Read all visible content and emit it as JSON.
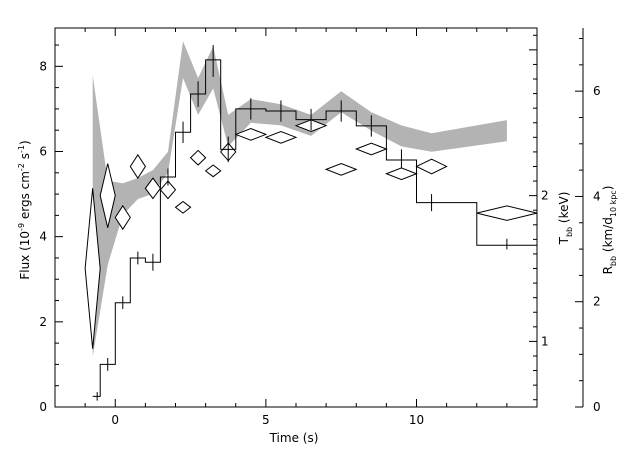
{
  "chart_data": {
    "type": "line",
    "xlabel": "Time (s)",
    "ylabel_left": {
      "main": "Flux (10",
      "sup1": "-9",
      "mid": " ergs cm",
      "sup2": "-2",
      "mid2": " s",
      "sup3": "-1",
      "end": ")"
    },
    "ylabel_right1": {
      "main": "T",
      "sub": "bb",
      "end": " (keV)"
    },
    "ylabel_right2": {
      "main": "R",
      "sub": "bb",
      "mid": " (km/d",
      "sub2": "10 kpc",
      "end": ")"
    },
    "xlim": [
      -2,
      14
    ],
    "ylim_left": [
      0,
      8.9
    ],
    "ylim_T": [
      0.55,
      3.15
    ],
    "ylim_R": [
      0,
      7.2
    ],
    "xticks": [
      0,
      5,
      10
    ],
    "yticks_left": [
      0,
      2,
      4,
      6,
      8
    ],
    "yticks_T": [
      1,
      2
    ],
    "yticks_R": [
      0,
      2,
      4,
      6
    ],
    "flux_steps": [
      {
        "x0": -0.75,
        "x1": -0.5,
        "y": 0.25
      },
      {
        "x0": -0.5,
        "x1": 0.0,
        "y": 1.0
      },
      {
        "x0": 0.0,
        "x1": 0.5,
        "y": 2.45
      },
      {
        "x0": 0.5,
        "x1": 1.0,
        "y": 3.5
      },
      {
        "x0": 1.0,
        "x1": 1.5,
        "y": 3.4
      },
      {
        "x0": 1.5,
        "x1": 2.0,
        "y": 5.4
      },
      {
        "x0": 2.0,
        "x1": 2.5,
        "y": 6.45
      },
      {
        "x0": 2.5,
        "x1": 3.0,
        "y": 7.35
      },
      {
        "x0": 3.0,
        "x1": 3.5,
        "y": 8.15
      },
      {
        "x0": 3.5,
        "x1": 4.0,
        "y": 6.05
      },
      {
        "x0": 4.0,
        "x1": 5.0,
        "y": 7.0
      },
      {
        "x0": 5.0,
        "x1": 6.0,
        "y": 6.95
      },
      {
        "x0": 6.0,
        "x1": 7.0,
        "y": 6.75
      },
      {
        "x0": 7.0,
        "x1": 8.0,
        "y": 6.95
      },
      {
        "x0": 8.0,
        "x1": 9.0,
        "y": 6.6
      },
      {
        "x0": 9.0,
        "x1": 10.0,
        "y": 5.8
      },
      {
        "x0": 10.0,
        "x1": 11.0,
        "y": 4.8
      },
      {
        "x0": 11.0,
        "x1": 12.0,
        "y": 4.8
      },
      {
        "x0": 12.0,
        "x1": 14.0,
        "y": 3.8
      }
    ],
    "flux_errors": [
      {
        "x": -0.6,
        "lo": 0.15,
        "hi": 0.35
      },
      {
        "x": -0.25,
        "lo": 0.85,
        "hi": 1.15
      },
      {
        "x": 0.25,
        "lo": 2.3,
        "hi": 2.6
      },
      {
        "x": 0.75,
        "lo": 3.35,
        "hi": 3.65
      },
      {
        "x": 1.25,
        "lo": 3.2,
        "hi": 3.6
      },
      {
        "x": 1.75,
        "lo": 5.2,
        "hi": 5.6
      },
      {
        "x": 2.25,
        "lo": 6.2,
        "hi": 6.7
      },
      {
        "x": 2.75,
        "lo": 7.05,
        "hi": 7.65
      },
      {
        "x": 3.25,
        "lo": 7.75,
        "hi": 8.5
      },
      {
        "x": 3.75,
        "lo": 5.75,
        "hi": 6.35
      },
      {
        "x": 4.5,
        "lo": 6.75,
        "hi": 7.25
      },
      {
        "x": 5.5,
        "lo": 6.7,
        "hi": 7.2
      },
      {
        "x": 6.5,
        "lo": 6.5,
        "hi": 7.0
      },
      {
        "x": 7.5,
        "lo": 6.7,
        "hi": 7.2
      },
      {
        "x": 8.5,
        "lo": 6.35,
        "hi": 6.85
      },
      {
        "x": 9.5,
        "lo": 5.6,
        "hi": 6.05
      },
      {
        "x": 10.5,
        "lo": 4.6,
        "hi": 5.0
      },
      {
        "x": 13.0,
        "lo": 3.7,
        "hi": 3.95
      }
    ],
    "temperature_diamonds": [
      {
        "x": -0.75,
        "dx": 0.25,
        "T": 1.5,
        "dT": 0.55
      },
      {
        "x": -0.25,
        "dx": 0.25,
        "T": 2.0,
        "dT": 0.22
      },
      {
        "x": 0.25,
        "dx": 0.25,
        "T": 1.85,
        "dT": 0.08
      },
      {
        "x": 0.75,
        "dx": 0.25,
        "T": 2.2,
        "dT": 0.08
      },
      {
        "x": 1.25,
        "dx": 0.25,
        "T": 2.05,
        "dT": 0.07
      },
      {
        "x": 1.75,
        "dx": 0.25,
        "T": 2.04,
        "dT": 0.06
      },
      {
        "x": 2.25,
        "dx": 0.25,
        "T": 1.92,
        "dT": 0.04
      },
      {
        "x": 2.75,
        "dx": 0.25,
        "T": 2.26,
        "dT": 0.05
      },
      {
        "x": 3.25,
        "dx": 0.25,
        "T": 2.17,
        "dT": 0.04
      },
      {
        "x": 3.75,
        "dx": 0.25,
        "T": 2.3,
        "dT": 0.06
      },
      {
        "x": 4.5,
        "dx": 0.5,
        "T": 2.42,
        "dT": 0.04
      },
      {
        "x": 5.5,
        "dx": 0.5,
        "T": 2.4,
        "dT": 0.04
      },
      {
        "x": 6.5,
        "dx": 0.5,
        "T": 2.48,
        "dT": 0.04
      },
      {
        "x": 7.5,
        "dx": 0.5,
        "T": 2.18,
        "dT": 0.04
      },
      {
        "x": 8.5,
        "dx": 0.5,
        "T": 2.32,
        "dT": 0.04
      },
      {
        "x": 9.5,
        "dx": 0.5,
        "T": 2.15,
        "dT": 0.04
      },
      {
        "x": 10.5,
        "dx": 0.5,
        "T": 2.2,
        "dT": 0.05
      },
      {
        "x": 13.0,
        "dx": 1.0,
        "T": 1.88,
        "dT": 0.05
      }
    ],
    "radius_band": [
      {
        "x": -0.75,
        "lo": 0.95,
        "hi": 6.3
      },
      {
        "x": -0.25,
        "lo": 2.7,
        "hi": 4.3
      },
      {
        "x": 0.25,
        "lo": 3.65,
        "hi": 4.25
      },
      {
        "x": 0.75,
        "lo": 3.95,
        "hi": 4.35
      },
      {
        "x": 1.25,
        "lo": 4.05,
        "hi": 4.5
      },
      {
        "x": 1.75,
        "lo": 4.45,
        "hi": 4.85
      },
      {
        "x": 2.25,
        "lo": 6.25,
        "hi": 6.95
      },
      {
        "x": 2.75,
        "lo": 5.55,
        "hi": 6.25
      },
      {
        "x": 3.25,
        "lo": 6.05,
        "hi": 6.85
      },
      {
        "x": 3.75,
        "lo": 4.95,
        "hi": 5.55
      },
      {
        "x": 4.5,
        "lo": 5.4,
        "hi": 5.85
      },
      {
        "x": 5.5,
        "lo": 5.35,
        "hi": 5.75
      },
      {
        "x": 6.5,
        "lo": 5.15,
        "hi": 5.55
      },
      {
        "x": 7.5,
        "lo": 5.6,
        "hi": 6.0
      },
      {
        "x": 8.5,
        "lo": 5.25,
        "hi": 5.6
      },
      {
        "x": 9.5,
        "lo": 4.95,
        "hi": 5.35
      },
      {
        "x": 10.5,
        "lo": 4.85,
        "hi": 5.2
      },
      {
        "x": 13.0,
        "lo": 5.05,
        "hi": 5.45
      }
    ],
    "band_color": "#b3b3b3",
    "line_color": "#000000"
  }
}
